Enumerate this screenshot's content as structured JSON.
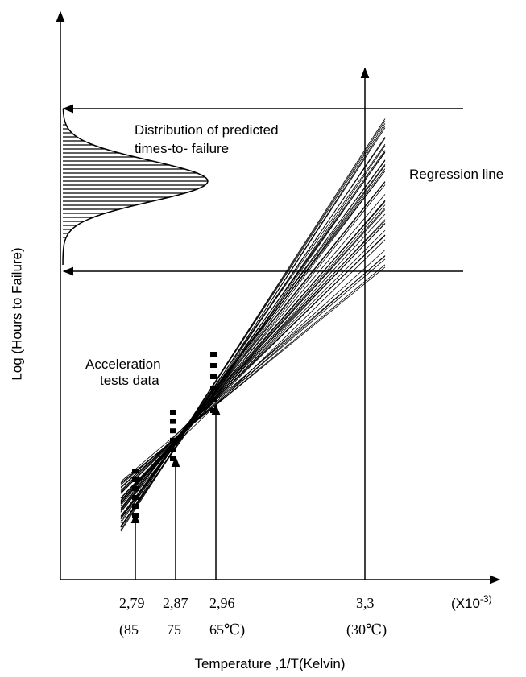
{
  "y_axis_label": "Log (Hours to Failure)",
  "x_axis_label": "Temperature ,1/T(Kelvin)",
  "x_unit": {
    "base": "(X10",
    "exponent": "-3)"
  },
  "ticks": [
    {
      "value": "2,79",
      "temperature": "(85"
    },
    {
      "value": "2,87",
      "temperature": "75"
    },
    {
      "value": "2,96",
      "temperature": "65℃)"
    },
    {
      "value": "3,3",
      "temperature": "(30℃)"
    }
  ],
  "annotations": {
    "distribution": [
      "Distribution of predicted",
      "times-to- failure"
    ],
    "regression": "Regression line",
    "acceleration": [
      "Acceleration",
      "tests data"
    ]
  }
}
